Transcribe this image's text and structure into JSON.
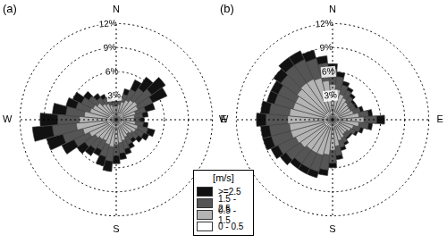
{
  "legend_title": "[m/s]",
  "chart_data": [
    {
      "type": "windrose",
      "title": "(a)",
      "stacked": true,
      "grid": true,
      "categories": [
        "N",
        null,
        null,
        null,
        null,
        null,
        null,
        null,
        null,
        "E",
        null,
        null,
        null,
        null,
        null,
        null,
        null,
        null,
        "S",
        null,
        null,
        null,
        null,
        null,
        null,
        null,
        null,
        "W",
        null,
        null,
        null,
        null,
        null,
        null,
        null,
        null
      ],
      "rlim": [
        0,
        12
      ],
      "rticks": [
        {
          "value": 3,
          "label": "3%"
        },
        {
          "value": 6,
          "label": "6%"
        },
        {
          "value": 9,
          "label": "9%"
        },
        {
          "value": 12,
          "label": "12%"
        }
      ],
      "series": [
        {
          "name": "0 - 0.5",
          "color": "#ffffff",
          "values": [
            0.8,
            0.8,
            0.9,
            0.9,
            1.0,
            1.0,
            1.0,
            0.9,
            0.9,
            0.9,
            0.9,
            1.0,
            1.0,
            0.9,
            0.9,
            0.9,
            1.0,
            1.0,
            1.0,
            1.0,
            1.0,
            1.0,
            1.0,
            1.0,
            1.1,
            1.1,
            1.2,
            1.2,
            1.1,
            1.0,
            1.0,
            1.0,
            0.9,
            0.9,
            0.8,
            0.8
          ]
        },
        {
          "name": "0.5 - 1.5",
          "color": "#b4b4b4",
          "values": [
            0.9,
            1.1,
            1.4,
            1.8,
            2.0,
            2.2,
            2.0,
            1.6,
            1.4,
            1.3,
            1.5,
            1.8,
            1.7,
            1.5,
            1.3,
            1.5,
            1.7,
            1.9,
            2.1,
            2.4,
            2.2,
            1.9,
            2.0,
            2.2,
            2.6,
            3.2,
            3.8,
            3.4,
            2.9,
            2.4,
            2.2,
            1.9,
            1.5,
            1.3,
            1.1,
            0.9
          ]
        },
        {
          "name": "1.5 - 2.5",
          "color": "#555555",
          "values": [
            0.5,
            0.7,
            1.0,
            1.5,
            1.8,
            2.2,
            2.0,
            1.3,
            1.0,
            0.8,
            1.0,
            1.3,
            1.1,
            1.0,
            0.8,
            1.0,
            1.1,
            1.3,
            1.4,
            1.8,
            1.6,
            1.3,
            1.5,
            1.6,
            2.1,
            2.6,
            3.0,
            2.7,
            2.3,
            1.8,
            1.6,
            1.3,
            1.0,
            0.8,
            0.7,
            0.5
          ]
        },
        {
          "name": ">=2.5",
          "color": "#111111",
          "values": [
            0.3,
            0.4,
            0.7,
            1.3,
            1.7,
            2.1,
            2.0,
            1.2,
            0.7,
            0.5,
            0.6,
            0.9,
            0.7,
            0.6,
            0.5,
            0.6,
            0.7,
            0.8,
            1.0,
            1.3,
            1.2,
            0.8,
            1.0,
            1.2,
            1.7,
            2.1,
            2.5,
            2.2,
            1.7,
            1.3,
            1.2,
            0.8,
            0.6,
            0.5,
            0.4,
            0.3
          ]
        }
      ]
    },
    {
      "type": "windrose",
      "title": "(b)",
      "stacked": true,
      "grid": true,
      "categories": [
        "N",
        null,
        null,
        null,
        null,
        null,
        null,
        null,
        null,
        "E",
        null,
        null,
        null,
        null,
        null,
        null,
        null,
        null,
        "S",
        null,
        null,
        null,
        null,
        null,
        null,
        null,
        null,
        "W",
        null,
        null,
        null,
        null,
        null,
        null,
        null,
        null
      ],
      "rlim": [
        0,
        12
      ],
      "rticks": [
        {
          "value": 3,
          "label": "3%"
        },
        {
          "value": 6,
          "label": "6%"
        },
        {
          "value": 9,
          "label": "9%"
        },
        {
          "value": 12,
          "label": "12%"
        }
      ],
      "series": [
        {
          "name": "0 - 0.5",
          "color": "#ffffff",
          "values": [
            1.0,
            1.0,
            1.0,
            1.0,
            0.9,
            0.9,
            0.9,
            0.9,
            1.0,
            1.0,
            1.0,
            0.9,
            0.9,
            0.9,
            0.9,
            0.9,
            0.9,
            1.0,
            1.0,
            1.0,
            1.0,
            1.0,
            1.0,
            1.1,
            1.1,
            1.1,
            1.1,
            1.1,
            1.1,
            1.1,
            1.1,
            1.1,
            1.1,
            1.1,
            1.1,
            1.1
          ]
        },
        {
          "name": "0.5 - 1.5",
          "color": "#b4b4b4",
          "values": [
            3.4,
            2.8,
            2.3,
            2.0,
            1.8,
            1.6,
            1.6,
            1.8,
            2.3,
            2.9,
            2.3,
            1.8,
            1.6,
            1.3,
            1.3,
            1.6,
            1.8,
            2.3,
            2.8,
            3.4,
            3.6,
            3.6,
            3.6,
            3.8,
            4.0,
            4.3,
            4.3,
            4.5,
            4.3,
            4.0,
            4.0,
            4.3,
            4.5,
            4.5,
            4.3,
            3.8
          ]
        },
        {
          "name": "1.5 - 2.5",
          "color": "#555555",
          "values": [
            1.9,
            1.6,
            1.2,
            1.1,
            0.9,
            0.7,
            0.7,
            0.9,
            1.2,
            1.6,
            1.2,
            0.9,
            0.7,
            0.6,
            0.6,
            0.7,
            0.9,
            1.2,
            1.6,
            1.9,
            2.1,
            2.1,
            2.1,
            2.2,
            2.4,
            2.5,
            2.5,
            2.7,
            2.5,
            2.4,
            2.4,
            2.5,
            2.7,
            2.7,
            2.5,
            2.2
          ]
        },
        {
          "name": ">=2.5",
          "color": "#111111",
          "values": [
            0.7,
            0.6,
            0.5,
            0.4,
            0.4,
            0.3,
            0.3,
            0.4,
            0.5,
            1.0,
            0.5,
            0.4,
            0.3,
            0.2,
            0.2,
            0.3,
            0.4,
            0.5,
            0.6,
            0.7,
            0.8,
            0.8,
            0.8,
            0.9,
            1.0,
            1.1,
            1.1,
            1.2,
            1.1,
            1.0,
            1.0,
            1.1,
            1.2,
            1.2,
            1.1,
            0.9
          ]
        }
      ]
    }
  ]
}
